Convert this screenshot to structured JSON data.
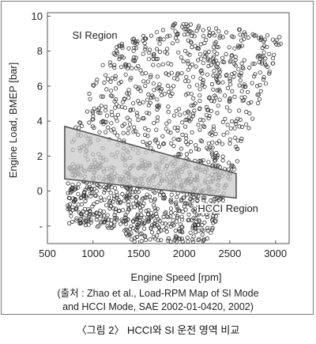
{
  "chart_data": {
    "type": "scatter",
    "title": "",
    "xlabel": "Engine Speed [rpm]",
    "ylabel": "Engine Load, BMEP [bar]",
    "xlim": [
      500,
      3150
    ],
    "ylim": [
      -3,
      10.2
    ],
    "xticks": [
      "500",
      "1000",
      "1500",
      "2000",
      "2500",
      "3000"
    ],
    "xtick_values": [
      500,
      1000,
      1500,
      2000,
      2500,
      3000
    ],
    "yticks": [
      "10",
      "8",
      "6",
      "4",
      "2",
      "0",
      "-"
    ],
    "ytick_values": [
      10,
      8,
      6,
      4,
      2,
      0,
      -2
    ],
    "grid": false,
    "annotations": [
      {
        "text": "SI Region",
        "x": 1020,
        "y": 8.7
      },
      {
        "text": "HCCI Region",
        "x": 2480,
        "y": -1.2
      }
    ],
    "series": [
      {
        "name": "",
        "marker": "open-circle",
        "color": "#333333",
        "region_outline": [
          [
            700,
            -1.9
          ],
          [
            760,
            3.5
          ],
          [
            1200,
            8.2
          ],
          [
            1900,
            9.8
          ],
          [
            2650,
            9.2
          ],
          [
            3080,
            8.8
          ],
          [
            3050,
            8.3
          ],
          [
            2150,
            -4.5
          ],
          [
            1800,
            -4.6
          ],
          [
            1300,
            -2.2
          ]
        ],
        "point_count": 1500
      },
      {
        "name": "",
        "type": "area",
        "fill": "#c8c8c8",
        "stroke": "#555555",
        "polygon": [
          [
            690,
            3.7
          ],
          [
            2570,
            1.0
          ],
          [
            2570,
            -0.4
          ],
          [
            690,
            0.7
          ]
        ]
      }
    ]
  },
  "source": {
    "line1": "(출처 : Zhao et al., Load-RPM Map of SI Mode",
    "line2": "and HCCI Mode, SAE 2002-01-0420, 2002)"
  },
  "caption": "〈그림 2〉 HCCI와 SI 운전 영역 비교"
}
